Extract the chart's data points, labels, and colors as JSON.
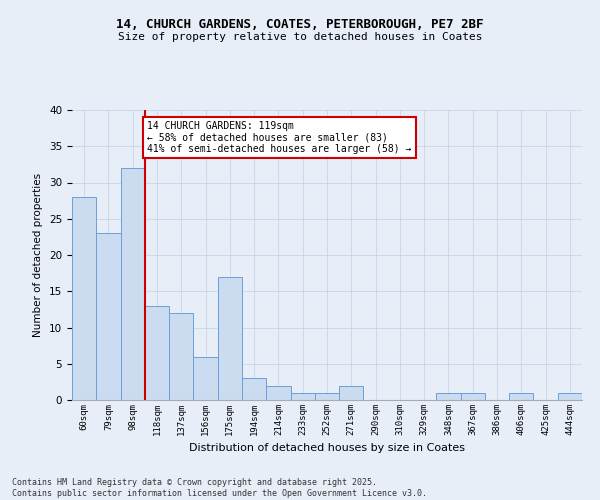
{
  "title_line1": "14, CHURCH GARDENS, COATES, PETERBOROUGH, PE7 2BF",
  "title_line2": "Size of property relative to detached houses in Coates",
  "xlabel": "Distribution of detached houses by size in Coates",
  "ylabel": "Number of detached properties",
  "categories": [
    "60sqm",
    "79sqm",
    "98sqm",
    "118sqm",
    "137sqm",
    "156sqm",
    "175sqm",
    "194sqm",
    "214sqm",
    "233sqm",
    "252sqm",
    "271sqm",
    "290sqm",
    "310sqm",
    "329sqm",
    "348sqm",
    "367sqm",
    "386sqm",
    "406sqm",
    "425sqm",
    "444sqm"
  ],
  "values": [
    28,
    23,
    32,
    13,
    12,
    6,
    17,
    3,
    2,
    1,
    1,
    2,
    0,
    0,
    0,
    1,
    1,
    0,
    1,
    0,
    1
  ],
  "bar_color": "#ccdcf0",
  "bar_edge_color": "#6a9fd8",
  "highlight_bar_index": 3,
  "highlight_line_color": "#cc0000",
  "annotation_box_text": "14 CHURCH GARDENS: 119sqm\n← 58% of detached houses are smaller (83)\n41% of semi-detached houses are larger (58) →",
  "annotation_box_color": "#cc0000",
  "annotation_bg": "white",
  "ylim": [
    0,
    40
  ],
  "yticks": [
    0,
    5,
    10,
    15,
    20,
    25,
    30,
    35,
    40
  ],
  "grid_color": "#c8d4e8",
  "footer_line1": "Contains HM Land Registry data © Crown copyright and database right 2025.",
  "footer_line2": "Contains public sector information licensed under the Open Government Licence v3.0.",
  "bg_color": "#e8eef8"
}
